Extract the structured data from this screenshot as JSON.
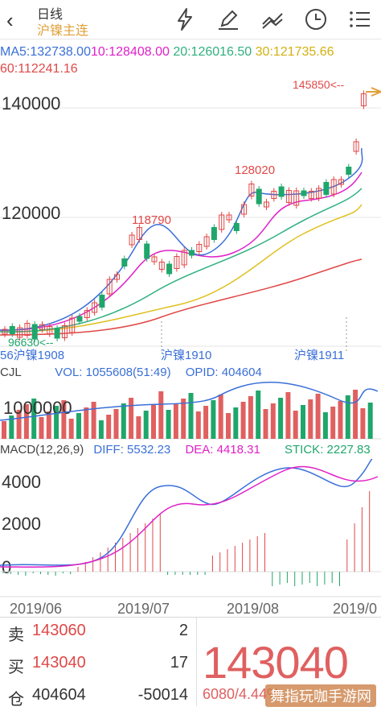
{
  "header": {
    "back_icon": "chevron-left-icon",
    "title": "日线",
    "subtitle": "沪镍主连",
    "tools": [
      "lightning-icon",
      "pen-icon",
      "trend-lines-icon",
      "clock-icon",
      "menu-list-icon"
    ]
  },
  "indicators": {
    "ma5": "MA5:132738.00",
    "ma10": "10:128408.00",
    "ma20": "20:126016.50",
    "ma30": "30:121735.66",
    "ma60": "60:112241.16"
  },
  "price_chart": {
    "y_ticks": [
      "140000",
      "120000"
    ],
    "annotations": {
      "high": "145850<--",
      "peak": "128020",
      "mid": "118790",
      "low": "96630<--"
    },
    "contracts": [
      "56沪镍1908",
      "沪镍1910",
      "沪镍1911"
    ]
  },
  "volume_panel": {
    "cjl": "CJL",
    "vol": "VOL: 1055608(51:49)",
    "opid": "OPID: 404604",
    "y_tick": "1000000"
  },
  "macd_panel": {
    "label": "MACD(12,26,9)",
    "diff": "DIFF: 5532.23",
    "dea": "DEA: 4418.31",
    "stick": "STICK: 2227.83",
    "y_ticks": [
      "4000",
      "2000",
      "0"
    ]
  },
  "x_axis": [
    "2019/06",
    "2019/07",
    "2019/08",
    "2019/0"
  ],
  "order_book": {
    "sell_label": "卖",
    "sell_price": "143060",
    "sell_qty": "2",
    "buy_label": "买",
    "buy_price": "143040",
    "buy_qty": "17",
    "oi_label": "仓",
    "oi_value": "404604",
    "oi_change": "-50014"
  },
  "quote": {
    "last_price": "143040",
    "change": "6080/4.44%"
  },
  "watermark": "舞指玩咖手游网",
  "colors": {
    "up": "#e04848",
    "down": "#1fa66b",
    "ma5": "#3a6fd8",
    "ma10": "#e020c8",
    "ma20": "#30b080",
    "ma30": "#e0c020",
    "ma60": "#e04848"
  }
}
